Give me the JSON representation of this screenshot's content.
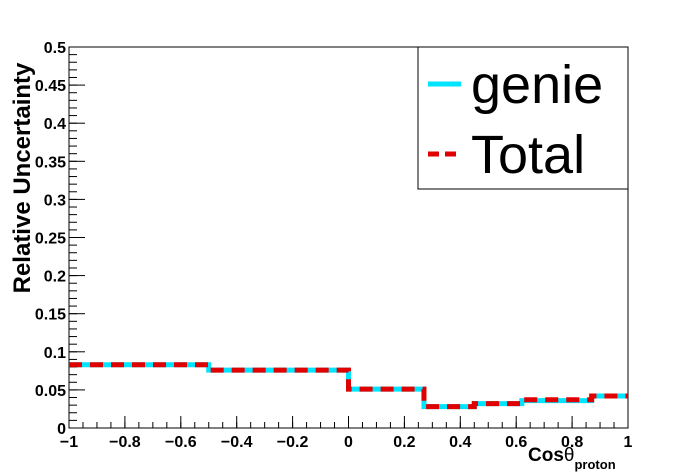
{
  "chart_data": {
    "type": "line",
    "style": "step-histogram",
    "title": "",
    "xlabel_main": "Cos",
    "xlabel_symbol": "θ",
    "xlabel_sub": "proton",
    "ylabel": "Relative Uncertainty",
    "xlim": [
      -1,
      1
    ],
    "ylim": [
      0,
      0.5
    ],
    "xticks": [
      "−1",
      "−0.8",
      "−0.6",
      "−0.4",
      "−0.2",
      "0",
      "0.2",
      "0.4",
      "0.6",
      "0.8",
      "1"
    ],
    "yticks": [
      "0",
      "0.05",
      "0.1",
      "0.15",
      "0.2",
      "0.25",
      "0.3",
      "0.35",
      "0.4",
      "0.45",
      "0.5"
    ],
    "bin_edges": [
      -1,
      -0.5,
      0,
      0.27,
      0.45,
      0.62,
      0.87,
      1
    ],
    "series": [
      {
        "name": "genie",
        "color": "#00e5ff",
        "values": [
          0.083,
          0.076,
          0.051,
          0.028,
          0.032,
          0.036,
          0.042
        ]
      },
      {
        "name": "Total",
        "color": "#e00000",
        "values": [
          0.083,
          0.076,
          0.051,
          0.028,
          0.032,
          0.037,
          0.042
        ]
      }
    ],
    "legend_position": "top-right",
    "grid": false
  }
}
